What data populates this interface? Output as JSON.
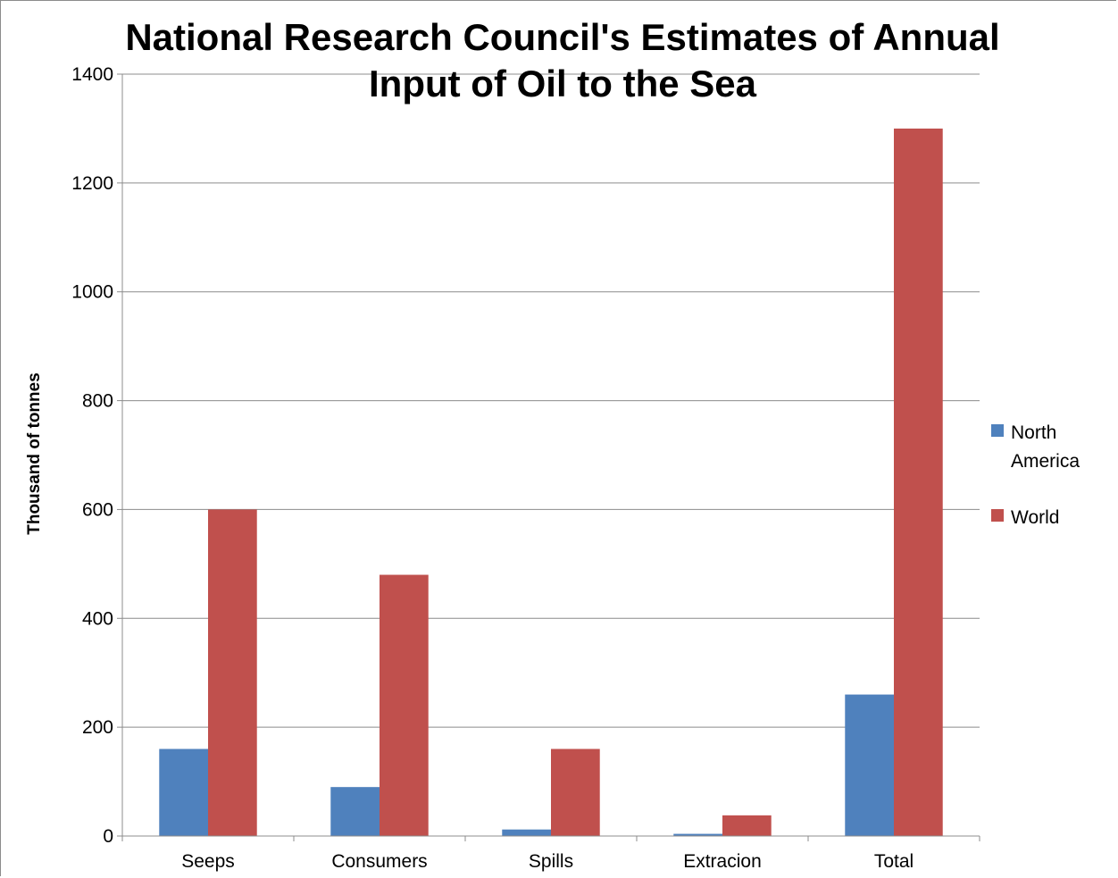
{
  "chart_data": {
    "type": "bar",
    "title_line1": "National Research Council's Estimates of Annual",
    "title_line2": "Input of Oil to the Sea",
    "xlabel": "",
    "ylabel": "Thousand of tonnes",
    "categories": [
      "Seeps",
      "Consumers",
      "Spills",
      "Extracion",
      "Total"
    ],
    "series": [
      {
        "name": "North America",
        "legend_lines": [
          "North",
          "America"
        ],
        "color": "#4f81bd",
        "values": [
          160,
          90,
          12,
          4,
          260
        ]
      },
      {
        "name": "World",
        "legend_lines": [
          "World"
        ],
        "color": "#c0504d",
        "values": [
          600,
          480,
          160,
          38,
          1300
        ]
      }
    ],
    "ylim": [
      0,
      1400
    ],
    "yticks": [
      0,
      200,
      400,
      600,
      800,
      1000,
      1200,
      1400
    ],
    "grid": true,
    "legend_position": "right"
  }
}
